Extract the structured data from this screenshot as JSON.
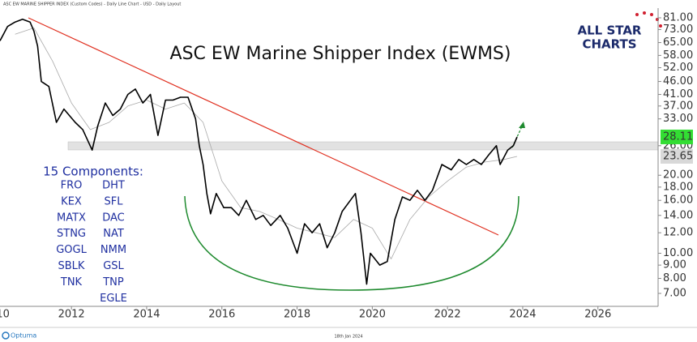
{
  "header": "ASC EW MARINE SHIPPER INDEX (Custom Codes) - Daily Line Chart - USD - Daily Layout",
  "logo": {
    "line1": "ALL STAR",
    "line2": "CHARTS"
  },
  "footer": {
    "brand": "Optuma",
    "date": "18th Jan 2024"
  },
  "components": {
    "title": "15 Components:",
    "columns": [
      [
        "FRO",
        "KEX",
        "MATX",
        "STNG",
        "GOGL",
        "SBLK",
        "TNK"
      ],
      [
        "DHT",
        "SFL",
        "DAC",
        "NAT",
        "NMM",
        "GSL",
        "TNP",
        "EGLE"
      ]
    ]
  },
  "chart_data": {
    "type": "line",
    "title": "ASC EW Marine Shipper Index (EWMS)",
    "log_y": true,
    "xlim": [
      2010.1,
      2027.6
    ],
    "xticks": [
      2010,
      2012,
      2014,
      2016,
      2018,
      2020,
      2022,
      2024,
      2026
    ],
    "ylim": [
      6.24,
      88.3
    ],
    "yticks": [
      {
        "value": 7,
        "label": "7.00"
      },
      {
        "value": 8,
        "label": "8.00"
      },
      {
        "value": 9,
        "label": "9.00"
      },
      {
        "value": 10,
        "label": "10.00"
      },
      {
        "value": 12,
        "label": "12.00"
      },
      {
        "value": 14,
        "label": "14.00"
      },
      {
        "value": 16,
        "label": "16.00"
      },
      {
        "value": 18,
        "label": "18.00"
      },
      {
        "value": 20,
        "label": "20.00"
      },
      {
        "value": 26,
        "label": "26.00"
      },
      {
        "value": 33,
        "label": "33.00"
      },
      {
        "value": 37,
        "label": "37.00"
      },
      {
        "value": 41,
        "label": "41.00"
      },
      {
        "value": 46,
        "label": "46.00"
      },
      {
        "value": 52,
        "label": "52.00"
      },
      {
        "value": 58,
        "label": "58.00"
      },
      {
        "value": 65,
        "label": "65.00"
      },
      {
        "value": 73,
        "label": "73.00"
      },
      {
        "value": 81,
        "label": "81.00"
      }
    ],
    "series": [
      {
        "color": "#000000",
        "label_color": "#33dd33",
        "x": [
          2010.1,
          2010.3,
          2010.5,
          2010.7,
          2010.9,
          2011.0,
          2011.1,
          2011.2,
          2011.4,
          2011.6,
          2011.8,
          2012.1,
          2012.3,
          2012.55,
          2012.7,
          2012.9,
          2013.1,
          2013.3,
          2013.5,
          2013.7,
          2013.9,
          2014.1,
          2014.3,
          2014.5,
          2014.7,
          2014.9,
          2015.1,
          2015.3,
          2015.4,
          2015.5,
          2015.6,
          2015.7,
          2015.85,
          2016.05,
          2016.25,
          2016.45,
          2016.65,
          2016.9,
          2017.1,
          2017.3,
          2017.55,
          2017.75,
          2018.0,
          2018.2,
          2018.4,
          2018.6,
          2018.8,
          2019.0,
          2019.2,
          2019.55,
          2019.7,
          2019.85,
          2019.95,
          2020.2,
          2020.4,
          2020.6,
          2020.8,
          2021.0,
          2021.2,
          2021.4,
          2021.6,
          2021.85,
          2022.1,
          2022.3,
          2022.5,
          2022.7,
          2022.9,
          2023.1,
          2023.3,
          2023.4,
          2023.6,
          2023.75,
          2023.85
        ],
        "values": [
          66,
          75,
          78,
          80,
          78,
          72,
          63,
          46,
          44,
          32,
          36,
          32,
          30,
          25,
          31,
          38,
          34,
          36,
          41,
          43,
          38,
          41,
          28.5,
          39,
          39,
          40,
          40,
          33,
          26,
          22,
          17,
          14.2,
          17,
          15,
          15,
          14,
          16,
          13.5,
          14,
          12.8,
          14,
          12.5,
          10,
          13,
          12,
          13,
          10.5,
          12,
          14.5,
          17,
          12,
          7.6,
          10,
          9,
          9.3,
          13.5,
          16.5,
          16,
          17.5,
          16,
          17.5,
          22,
          21,
          23,
          22,
          23,
          22,
          24,
          26,
          22,
          25,
          26,
          28.11
        ]
      },
      {
        "color": "#aaaaaa",
        "label_color": "#d8d8d8",
        "x": [
          2010.5,
          2011.0,
          2011.5,
          2012.0,
          2012.5,
          2013.0,
          2013.5,
          2014.0,
          2014.5,
          2015.0,
          2015.5,
          2016.0,
          2016.5,
          2017.0,
          2017.5,
          2018.0,
          2018.5,
          2019.0,
          2019.5,
          2020.0,
          2020.5,
          2021.0,
          2021.5,
          2022.0,
          2022.5,
          2023.0,
          2023.5,
          2023.85
        ],
        "values": [
          70,
          74,
          55,
          38,
          30,
          32,
          37,
          39,
          36,
          38,
          32,
          19,
          15,
          14.5,
          13.5,
          12.5,
          12,
          11.5,
          13.5,
          12.5,
          9.5,
          13.5,
          16.5,
          19,
          21.5,
          22.5,
          23,
          23.65
        ]
      }
    ]
  }
}
